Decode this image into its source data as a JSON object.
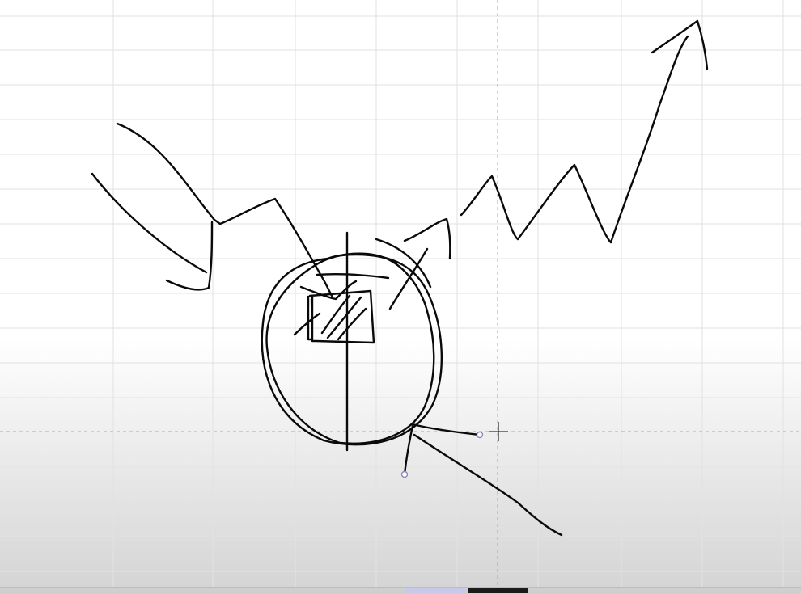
{
  "canvas": {
    "name": "drawing canvas",
    "background": "#ffffff",
    "grid_color": "#e2e2e2",
    "crosshair_color": "#a8a8a8",
    "stroke_color": "#0a0a0a",
    "handle_color": "#8a8ab8"
  },
  "tools": {
    "active_tool": "crosshair-cursor",
    "selection_handles": 2
  },
  "strip": {
    "tab_colors": [
      "#c8c8e8",
      "#1a1a1a"
    ]
  }
}
